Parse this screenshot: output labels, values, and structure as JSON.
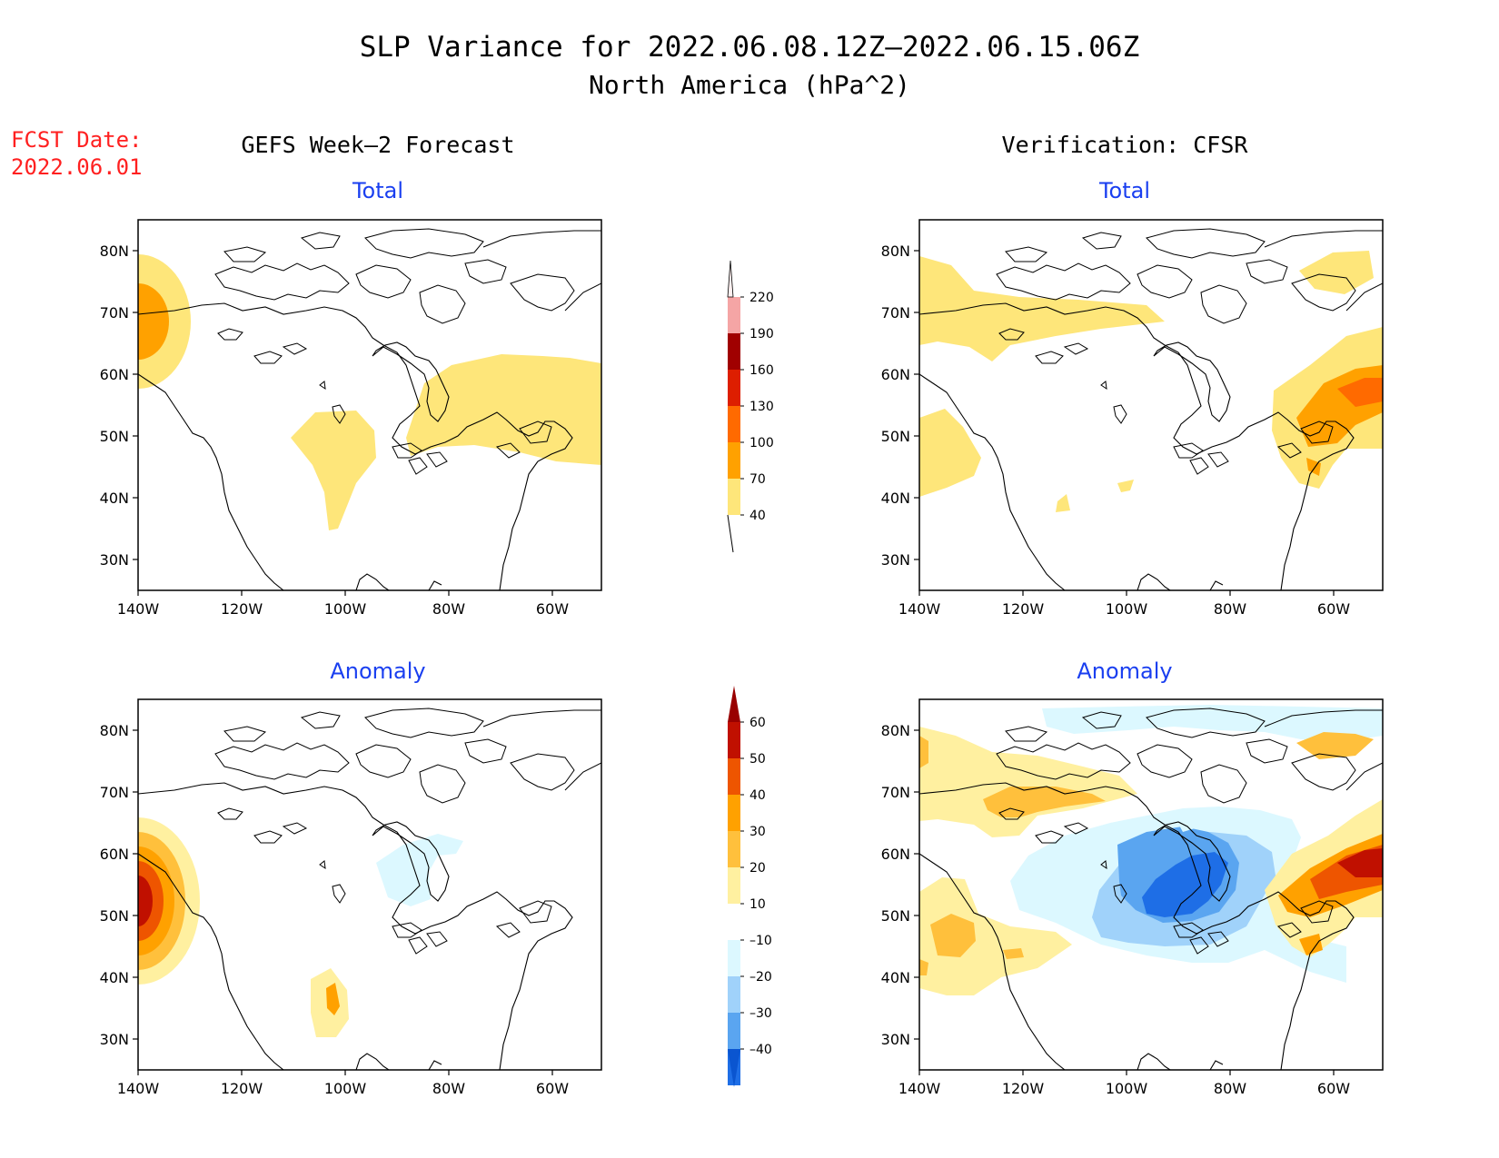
{
  "header": {
    "title": "SLP Variance for 2022.06.08.12Z–2022.06.15.06Z",
    "subtitle": "North America (hPa^2)"
  },
  "fcst": {
    "line1": "FCST Date:",
    "line2": "2022.06.01"
  },
  "columns": {
    "left": "GEFS Week–2 Forecast",
    "right": "Verification: CFSR"
  },
  "panel_titles": {
    "total": "Total",
    "anomaly": "Anomaly"
  },
  "axes": {
    "lat_labels": [
      "80N",
      "70N",
      "60N",
      "50N",
      "40N",
      "30N"
    ],
    "lon_labels": [
      "140W",
      "120W",
      "100W",
      "80W",
      "60W"
    ]
  },
  "colorbars": {
    "total": {
      "labels": [
        "220",
        "190",
        "160",
        "130",
        "100",
        "70",
        "40"
      ],
      "colors": [
        "#f5a5a5",
        "#a00000",
        "#dd1e00",
        "#ff6a00",
        "#ffa100",
        "#fee67a"
      ]
    },
    "anomaly": {
      "labels": [
        "60",
        "50",
        "40",
        "30",
        "20",
        "10",
        "–10",
        "–20",
        "–30",
        "–40"
      ],
      "colors": [
        "#c01000",
        "#ee5500",
        "#ffa100",
        "#ffc03c",
        "#fff0a0",
        "#ffffff",
        "#dcf8ff",
        "#a0d2fa",
        "#5aa5f0",
        "#1e6ee6"
      ]
    }
  },
  "colors": {
    "title_blue": "#1a3ff0",
    "fcst_red": "#ff2020"
  }
}
